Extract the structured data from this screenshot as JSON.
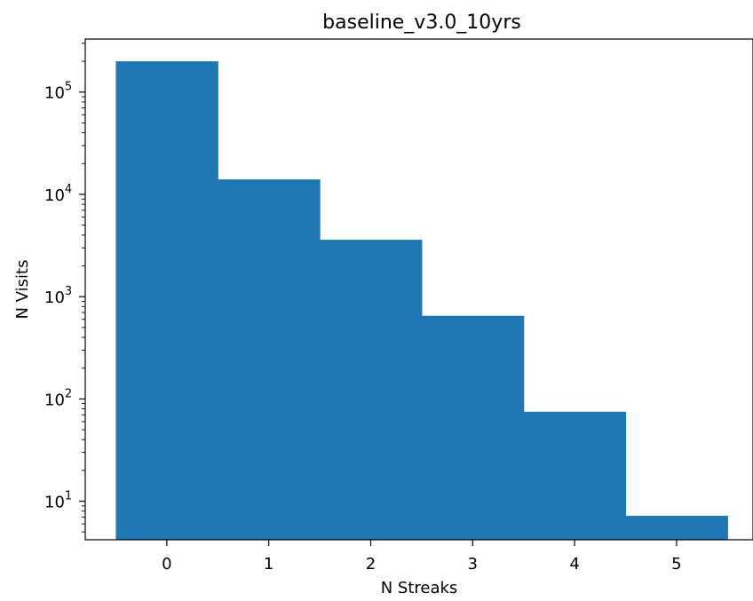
{
  "chart_data": {
    "type": "bar",
    "title": "baseline_v3.0_10yrs",
    "xlabel": "N Streaks",
    "ylabel": "N Visits",
    "yscale": "log",
    "bins": [
      {
        "left": -0.5,
        "right": 0.5,
        "value": 200000
      },
      {
        "left": 0.5,
        "right": 1.5,
        "value": 14000
      },
      {
        "left": 1.5,
        "right": 2.5,
        "value": 3600
      },
      {
        "left": 2.5,
        "right": 3.5,
        "value": 650
      },
      {
        "left": 3.5,
        "right": 4.5,
        "value": 75
      },
      {
        "left": 4.5,
        "right": 5.5,
        "value": 7.2
      }
    ],
    "xlim": [
      -0.8,
      5.75
    ],
    "ylim": [
      4.2,
      330000
    ],
    "xticks": [
      0,
      1,
      2,
      3,
      4,
      5
    ],
    "xtick_labels": [
      "0",
      "1",
      "2",
      "3",
      "4",
      "5"
    ],
    "ytick_exponents": [
      1,
      2,
      3,
      4,
      5
    ],
    "ytick_base": "10",
    "bar_color": "#1f77b4",
    "grid": false,
    "legend": "none"
  }
}
